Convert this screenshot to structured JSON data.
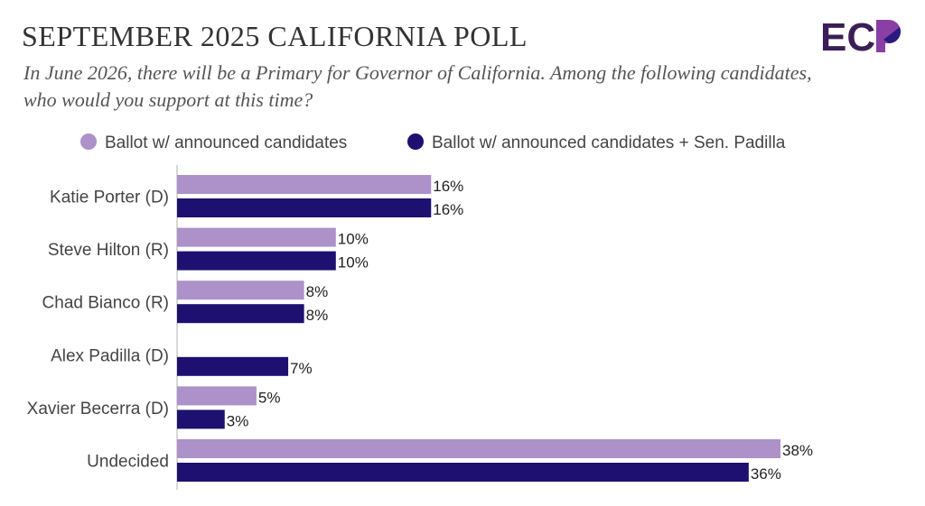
{
  "header": {
    "title": "SEPTEMBER 2025 CALIFORNIA POLL",
    "question": "In June 2026, there will be a Primary for Governor of California. Among the following candidates, who would you support at this time?",
    "logo_text": "ECP"
  },
  "colors": {
    "series1": "#ad91c9",
    "series2": "#1e1070",
    "logo_dark": "#3a1f56",
    "logo_purple": "#8a3fa5"
  },
  "chart_data": {
    "type": "bar",
    "orientation": "horizontal",
    "title": "SEPTEMBER 2025 CALIFORNIA POLL",
    "categories": [
      "Katie Porter (D)",
      "Steve Hilton (R)",
      "Chad Bianco (R)",
      "Alex Padilla (D)",
      "Xavier Becerra (D)",
      "Undecided"
    ],
    "series": [
      {
        "name": "Ballot w/ announced candidates",
        "values": [
          16,
          10,
          8,
          null,
          5,
          38
        ]
      },
      {
        "name": "Ballot w/ announced candidates + Sen. Padilla",
        "values": [
          16,
          10,
          8,
          7,
          3,
          36
        ]
      }
    ],
    "xlim": [
      0,
      38
    ],
    "legend": "top",
    "grid": false,
    "value_suffix": "%"
  }
}
